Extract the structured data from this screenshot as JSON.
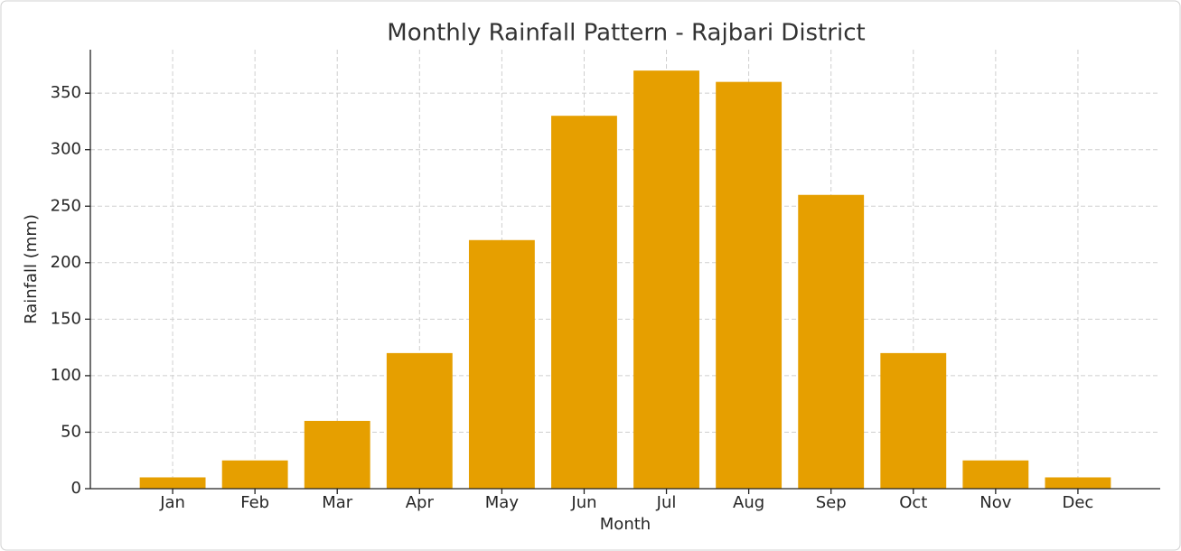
{
  "chart_data": {
    "type": "bar",
    "title": "Monthly Rainfall Pattern - Rajbari District",
    "x_label": "Month",
    "y_label": "Rainfall (mm)",
    "categories": [
      "Jan",
      "Feb",
      "Mar",
      "Apr",
      "May",
      "Jun",
      "Jul",
      "Aug",
      "Sep",
      "Oct",
      "Nov",
      "Dec"
    ],
    "values": [
      10,
      25,
      60,
      120,
      220,
      330,
      370,
      360,
      260,
      120,
      25,
      10
    ],
    "color": "#e69f00",
    "ylim": [
      0,
      388.5
    ],
    "yticks": [
      0,
      50,
      100,
      150,
      200,
      250,
      300,
      350
    ],
    "grid": true
  }
}
